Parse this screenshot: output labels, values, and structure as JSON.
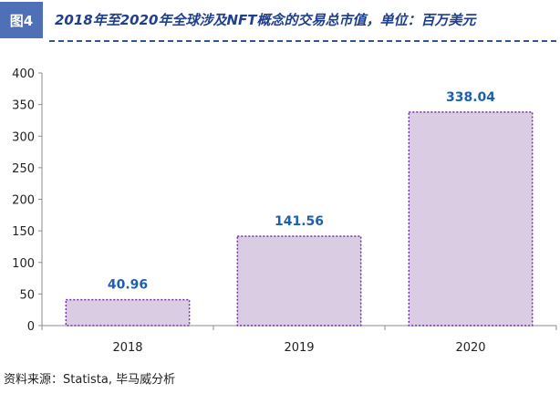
{
  "header": {
    "figure_label": "图4",
    "title": "2018年至2020年全球涉及NFT概念的交易总市值，单位：百万美元"
  },
  "chart_data": {
    "type": "bar",
    "title": "2018年至2020年全球涉及NFT概念的交易总市值，单位：百万美元",
    "categories": [
      "2018",
      "2019",
      "2020"
    ],
    "values": [
      40.96,
      141.56,
      338.04
    ],
    "value_labels": [
      "40.96",
      "141.56",
      "338.04"
    ],
    "y_ticks": [
      0,
      50,
      100,
      150,
      200,
      250,
      300,
      350,
      400
    ],
    "ylim": [
      0,
      400
    ],
    "xlabel": "",
    "ylabel": "",
    "unit": "百万美元",
    "grid": false,
    "bar_color": "#d9cce3",
    "bar_border_color": "#7030a0",
    "label_color": "#1f5fb0"
  },
  "footer": {
    "source": "资料来源：Statista, 毕马威分析"
  }
}
